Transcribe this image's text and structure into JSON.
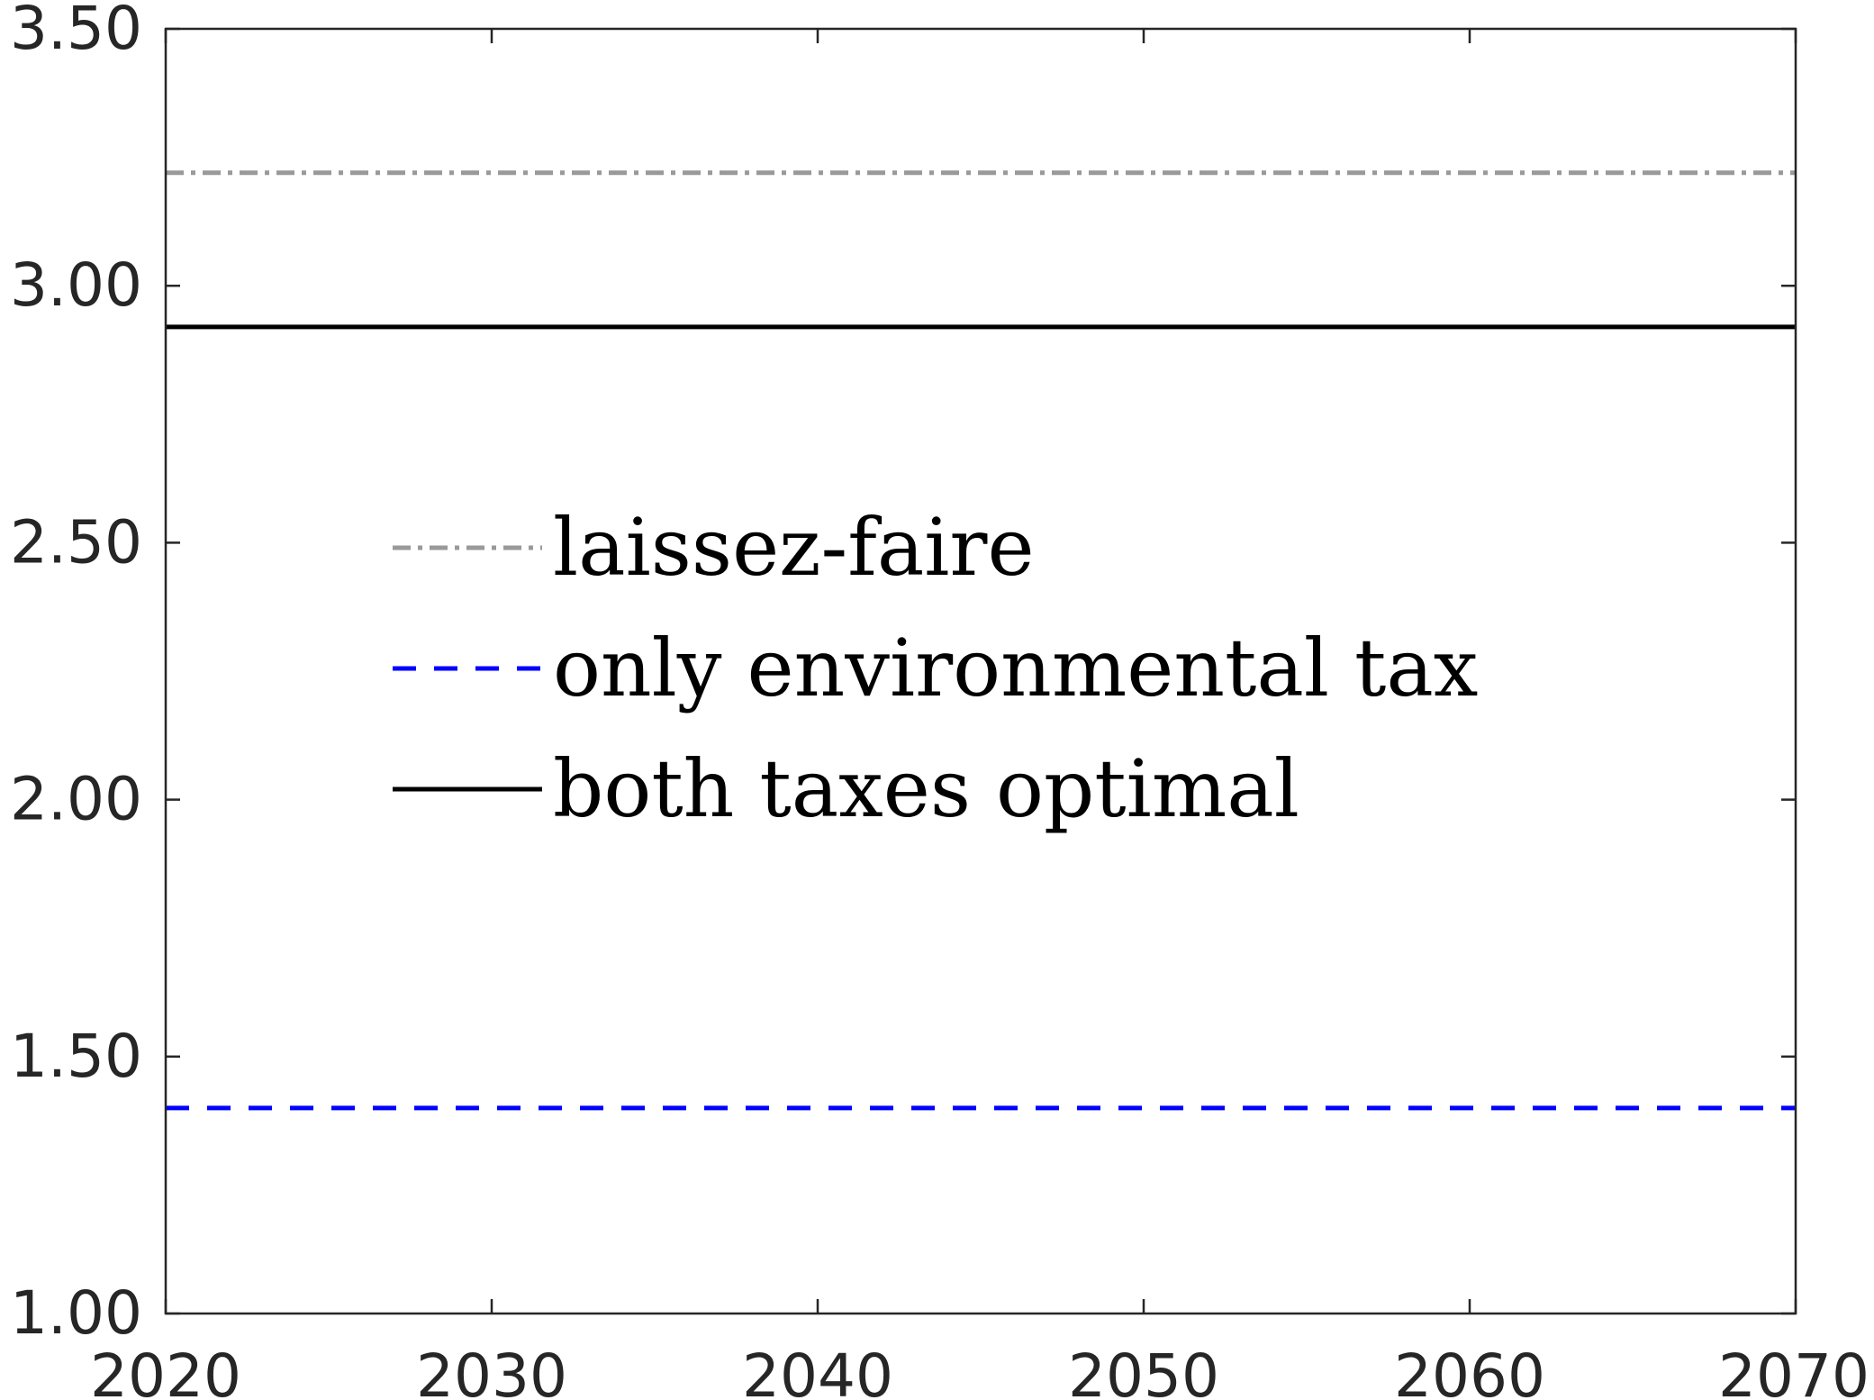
{
  "chart_data": {
    "type": "line",
    "title": "",
    "xlabel": "",
    "ylabel": "",
    "xlim": [
      2020,
      2070
    ],
    "ylim": [
      1.0,
      3.5
    ],
    "x_ticks": [
      2020,
      2030,
      2040,
      2050,
      2060,
      2070
    ],
    "y_ticks": [
      1.0,
      1.5,
      2.0,
      2.5,
      3.0,
      3.5
    ],
    "x_tick_labels": [
      "2020",
      "2030",
      "2040",
      "2050",
      "2060",
      "2070"
    ],
    "y_tick_labels": [
      "1.00",
      "1.50",
      "2.00",
      "2.50",
      "3.00",
      "3.50"
    ],
    "grid": false,
    "legend_position": "center-left",
    "series": [
      {
        "name": "laissez-faire",
        "color": "#999999",
        "line_style": "dash-dot",
        "x": [
          2020,
          2070
        ],
        "y": [
          3.22,
          3.22
        ]
      },
      {
        "name": "only environmental tax",
        "color": "#0000ff",
        "line_style": "dashed",
        "x": [
          2020,
          2070
        ],
        "y": [
          1.4,
          1.4
        ]
      },
      {
        "name": "both taxes optimal",
        "color": "#000000",
        "line_style": "solid",
        "x": [
          2020,
          2070
        ],
        "y": [
          2.92,
          2.92
        ]
      }
    ]
  }
}
